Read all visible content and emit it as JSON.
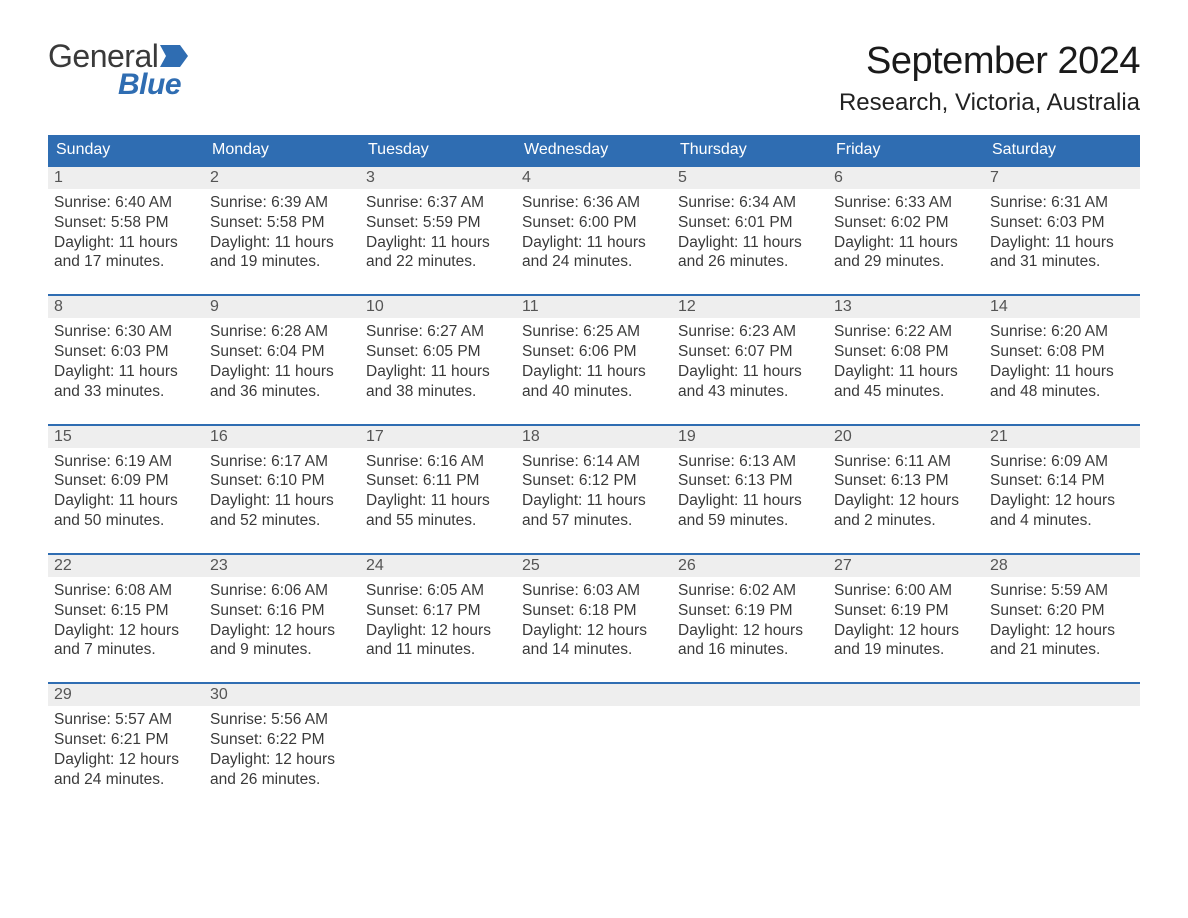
{
  "logo": {
    "general": "General",
    "blue": "Blue"
  },
  "header": {
    "title": "September 2024",
    "location": "Research, Victoria, Australia"
  },
  "day_headers": [
    "Sunday",
    "Monday",
    "Tuesday",
    "Wednesday",
    "Thursday",
    "Friday",
    "Saturday"
  ],
  "colors": {
    "header_bg": "#2f6db2",
    "header_fg": "#ffffff",
    "band_bg": "#eeeeee",
    "band_border": "#2f6db2",
    "text": "#3a3a3a",
    "daynum": "#555555",
    "logo_blue": "#2f6db2",
    "page_bg": "#ffffff"
  },
  "layout": {
    "columns": 7,
    "rows": 5,
    "cell_font_size": 15.5,
    "header_font_size": 16,
    "title_font_size": 38,
    "location_font_size": 24
  },
  "weeks": [
    [
      {
        "day": "1",
        "sunrise": "6:40 AM",
        "sunset": "5:58 PM",
        "daylight": "11 hours and 17 minutes."
      },
      {
        "day": "2",
        "sunrise": "6:39 AM",
        "sunset": "5:58 PM",
        "daylight": "11 hours and 19 minutes."
      },
      {
        "day": "3",
        "sunrise": "6:37 AM",
        "sunset": "5:59 PM",
        "daylight": "11 hours and 22 minutes."
      },
      {
        "day": "4",
        "sunrise": "6:36 AM",
        "sunset": "6:00 PM",
        "daylight": "11 hours and 24 minutes."
      },
      {
        "day": "5",
        "sunrise": "6:34 AM",
        "sunset": "6:01 PM",
        "daylight": "11 hours and 26 minutes."
      },
      {
        "day": "6",
        "sunrise": "6:33 AM",
        "sunset": "6:02 PM",
        "daylight": "11 hours and 29 minutes."
      },
      {
        "day": "7",
        "sunrise": "6:31 AM",
        "sunset": "6:03 PM",
        "daylight": "11 hours and 31 minutes."
      }
    ],
    [
      {
        "day": "8",
        "sunrise": "6:30 AM",
        "sunset": "6:03 PM",
        "daylight": "11 hours and 33 minutes."
      },
      {
        "day": "9",
        "sunrise": "6:28 AM",
        "sunset": "6:04 PM",
        "daylight": "11 hours and 36 minutes."
      },
      {
        "day": "10",
        "sunrise": "6:27 AM",
        "sunset": "6:05 PM",
        "daylight": "11 hours and 38 minutes."
      },
      {
        "day": "11",
        "sunrise": "6:25 AM",
        "sunset": "6:06 PM",
        "daylight": "11 hours and 40 minutes."
      },
      {
        "day": "12",
        "sunrise": "6:23 AM",
        "sunset": "6:07 PM",
        "daylight": "11 hours and 43 minutes."
      },
      {
        "day": "13",
        "sunrise": "6:22 AM",
        "sunset": "6:08 PM",
        "daylight": "11 hours and 45 minutes."
      },
      {
        "day": "14",
        "sunrise": "6:20 AM",
        "sunset": "6:08 PM",
        "daylight": "11 hours and 48 minutes."
      }
    ],
    [
      {
        "day": "15",
        "sunrise": "6:19 AM",
        "sunset": "6:09 PM",
        "daylight": "11 hours and 50 minutes."
      },
      {
        "day": "16",
        "sunrise": "6:17 AM",
        "sunset": "6:10 PM",
        "daylight": "11 hours and 52 minutes."
      },
      {
        "day": "17",
        "sunrise": "6:16 AM",
        "sunset": "6:11 PM",
        "daylight": "11 hours and 55 minutes."
      },
      {
        "day": "18",
        "sunrise": "6:14 AM",
        "sunset": "6:12 PM",
        "daylight": "11 hours and 57 minutes."
      },
      {
        "day": "19",
        "sunrise": "6:13 AM",
        "sunset": "6:13 PM",
        "daylight": "11 hours and 59 minutes."
      },
      {
        "day": "20",
        "sunrise": "6:11 AM",
        "sunset": "6:13 PM",
        "daylight": "12 hours and 2 minutes."
      },
      {
        "day": "21",
        "sunrise": "6:09 AM",
        "sunset": "6:14 PM",
        "daylight": "12 hours and 4 minutes."
      }
    ],
    [
      {
        "day": "22",
        "sunrise": "6:08 AM",
        "sunset": "6:15 PM",
        "daylight": "12 hours and 7 minutes."
      },
      {
        "day": "23",
        "sunrise": "6:06 AM",
        "sunset": "6:16 PM",
        "daylight": "12 hours and 9 minutes."
      },
      {
        "day": "24",
        "sunrise": "6:05 AM",
        "sunset": "6:17 PM",
        "daylight": "12 hours and 11 minutes."
      },
      {
        "day": "25",
        "sunrise": "6:03 AM",
        "sunset": "6:18 PM",
        "daylight": "12 hours and 14 minutes."
      },
      {
        "day": "26",
        "sunrise": "6:02 AM",
        "sunset": "6:19 PM",
        "daylight": "12 hours and 16 minutes."
      },
      {
        "day": "27",
        "sunrise": "6:00 AM",
        "sunset": "6:19 PM",
        "daylight": "12 hours and 19 minutes."
      },
      {
        "day": "28",
        "sunrise": "5:59 AM",
        "sunset": "6:20 PM",
        "daylight": "12 hours and 21 minutes."
      }
    ],
    [
      {
        "day": "29",
        "sunrise": "5:57 AM",
        "sunset": "6:21 PM",
        "daylight": "12 hours and 24 minutes."
      },
      {
        "day": "30",
        "sunrise": "5:56 AM",
        "sunset": "6:22 PM",
        "daylight": "12 hours and 26 minutes."
      },
      null,
      null,
      null,
      null,
      null
    ]
  ],
  "labels": {
    "sunrise": "Sunrise: ",
    "sunset": "Sunset: ",
    "daylight": "Daylight: "
  }
}
